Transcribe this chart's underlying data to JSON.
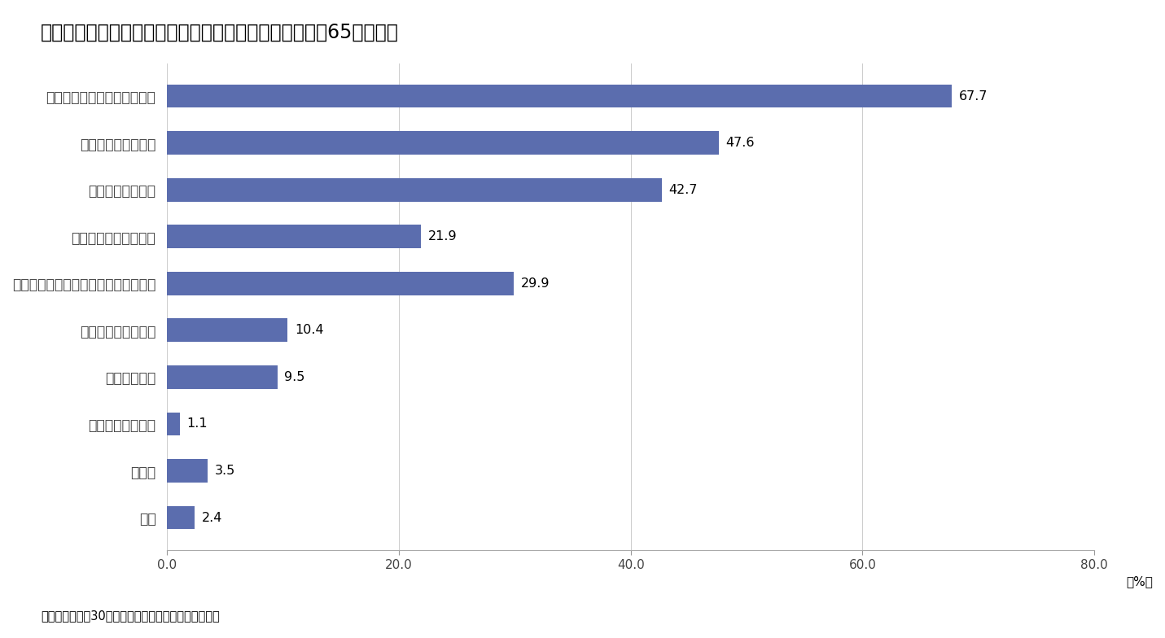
{
  "title": "図表４　今後の改善の目的（主な家計を支える者の年齢65歳以上）",
  "categories": [
    "きれいにする（傷みを直す）",
    "高齢期の住みやすさ",
    "使いやすさの向上",
    "災害時の安全性の向上",
    "性能の向上（断熱性、省エネ性など）",
    "親、子などとの同居",
    "広さや部屋数",
    "子育てのしやすさ",
    "その他",
    "不明"
  ],
  "values": [
    67.7,
    47.6,
    42.7,
    21.9,
    29.9,
    10.4,
    9.5,
    1.1,
    3.5,
    2.4
  ],
  "bar_color": "#5B6DAE",
  "xlim": [
    0,
    80.0
  ],
  "xticks": [
    0.0,
    20.0,
    40.0,
    60.0,
    80.0
  ],
  "xlabel_pct": "（%）",
  "source": "（資料）「平成30年住生活総合調査」（国土交通省）",
  "background_color": "#ffffff",
  "title_fontsize": 17,
  "label_fontsize": 12.5,
  "tick_fontsize": 11,
  "value_fontsize": 11.5
}
